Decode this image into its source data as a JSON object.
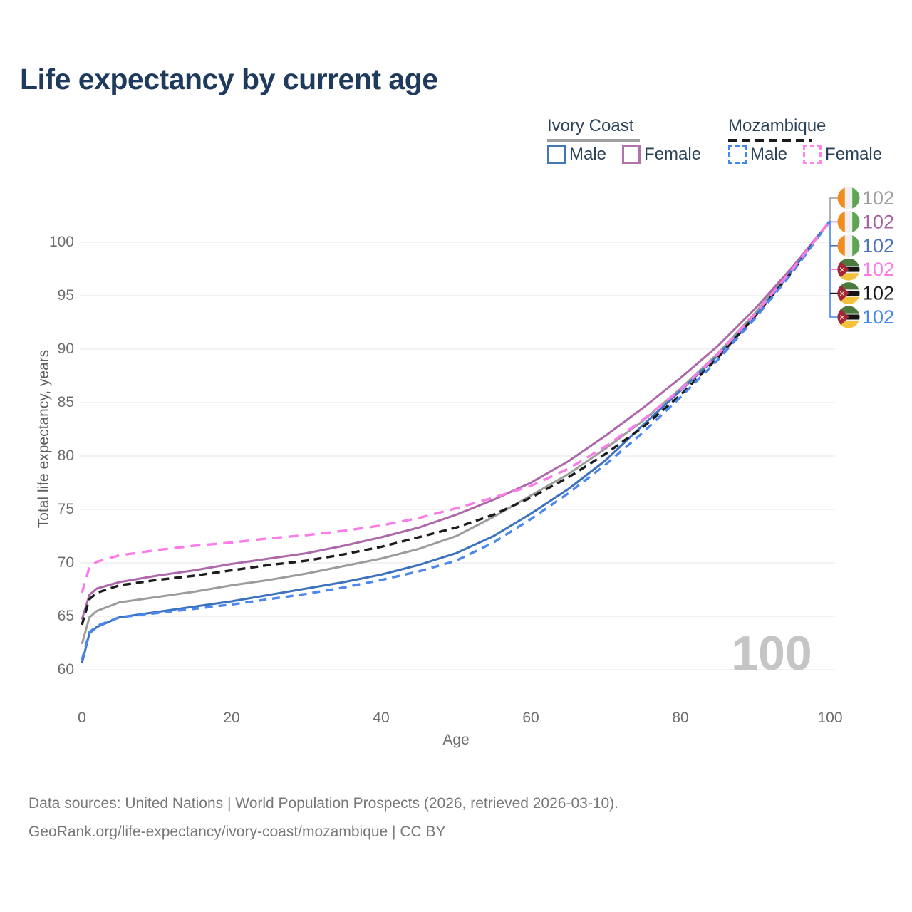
{
  "title": "Life expectancy by current age",
  "legend": {
    "ivory_coast": {
      "name": "Ivory Coast",
      "male_label": "Male",
      "female_label": "Female"
    },
    "mozambique": {
      "name": "Mozambique",
      "male_label": "Male",
      "female_label": "Female"
    }
  },
  "watermark": "100",
  "footer": {
    "line1": "Data sources: United Nations | World Population Prospects (2026, retrieved 2026-03-10).",
    "line2": "GeoRank.org/life-expectancy/ivory-coast/mozambique | CC BY"
  },
  "chart_data": {
    "type": "line",
    "title": "Life expectancy by current age",
    "xlabel": "Age",
    "ylabel": "Total life expectancy, years",
    "xlim": [
      0,
      100
    ],
    "ylim": [
      58,
      103
    ],
    "x_ticks": [
      0,
      20,
      40,
      60,
      80,
      100
    ],
    "y_ticks": [
      60,
      65,
      70,
      75,
      80,
      85,
      90,
      95,
      100
    ],
    "grid": "horizontal",
    "legend_position": "top-right",
    "x": [
      0,
      1,
      2,
      5,
      10,
      15,
      20,
      25,
      30,
      35,
      40,
      45,
      50,
      55,
      60,
      65,
      70,
      75,
      80,
      85,
      90,
      95,
      100
    ],
    "series": [
      {
        "name": "Ivory Coast — Both sexes",
        "country": "Ivory Coast",
        "color": "#9c9c9c",
        "dash": null,
        "values": [
          62.4,
          64.9,
          65.5,
          66.3,
          66.8,
          67.3,
          67.9,
          68.4,
          69.0,
          69.7,
          70.4,
          71.3,
          72.5,
          74.3,
          76.3,
          78.3,
          80.7,
          83.3,
          86.3,
          89.6,
          93.4,
          97.6,
          102
        ]
      },
      {
        "name": "Ivory Coast — Male",
        "country": "Ivory Coast",
        "color": "#3c72bd",
        "dash": null,
        "values": [
          60.6,
          63.4,
          64.0,
          64.9,
          65.4,
          65.9,
          66.4,
          67.0,
          67.6,
          68.2,
          68.9,
          69.8,
          70.9,
          72.5,
          74.6,
          76.9,
          79.6,
          82.9,
          86.1,
          89.4,
          93.1,
          97.4,
          102
        ]
      },
      {
        "name": "Ivory Coast — Female",
        "country": "Ivory Coast",
        "color": "#ac68ab",
        "dash": null,
        "values": [
          64.7,
          67.0,
          67.6,
          68.2,
          68.8,
          69.3,
          69.9,
          70.4,
          70.9,
          71.6,
          72.4,
          73.3,
          74.5,
          75.9,
          77.5,
          79.5,
          81.9,
          84.5,
          87.3,
          90.3,
          93.8,
          97.7,
          102
        ]
      },
      {
        "name": "Mozambique — Both sexes",
        "country": "Mozambique",
        "color": "#1c1c1c",
        "dash": "11 7",
        "values": [
          64.2,
          66.6,
          67.2,
          67.9,
          68.4,
          68.8,
          69.3,
          69.8,
          70.2,
          70.8,
          71.5,
          72.4,
          73.3,
          74.5,
          76.1,
          78.0,
          80.2,
          82.7,
          85.7,
          89.2,
          93.1,
          97.3,
          102
        ]
      },
      {
        "name": "Mozambique — Male",
        "country": "Mozambique",
        "color": "#4b87ef",
        "dash": "11 8",
        "values": [
          60.9,
          63.5,
          64.1,
          64.9,
          65.3,
          65.7,
          66.1,
          66.6,
          67.1,
          67.7,
          68.4,
          69.2,
          70.2,
          71.9,
          74.1,
          76.5,
          79.2,
          82.2,
          85.5,
          89.0,
          92.9,
          97.2,
          102
        ]
      },
      {
        "name": "Mozambique — Female",
        "country": "Mozambique",
        "color": "#fb7ce8",
        "dash": "14 9",
        "values": [
          67.2,
          69.6,
          70.1,
          70.7,
          71.2,
          71.6,
          71.9,
          72.3,
          72.6,
          73.0,
          73.5,
          74.2,
          75.1,
          76.1,
          77.2,
          78.8,
          80.9,
          83.4,
          86.2,
          89.5,
          93.3,
          97.5,
          102
        ]
      }
    ],
    "end_labels": [
      {
        "flag": "ivory-coast",
        "text": "102",
        "color": "#9e9e9e"
      },
      {
        "flag": "ivory-coast",
        "text": "102",
        "color": "#a8639f"
      },
      {
        "flag": "ivory-coast",
        "text": "102",
        "color": "#4a74b8"
      },
      {
        "flag": "mozambique",
        "text": "102",
        "color": "#ff7ce8"
      },
      {
        "flag": "mozambique",
        "text": "102",
        "color": "#1a1a1a"
      },
      {
        "flag": "mozambique",
        "text": "102",
        "color": "#4285f4"
      }
    ]
  }
}
